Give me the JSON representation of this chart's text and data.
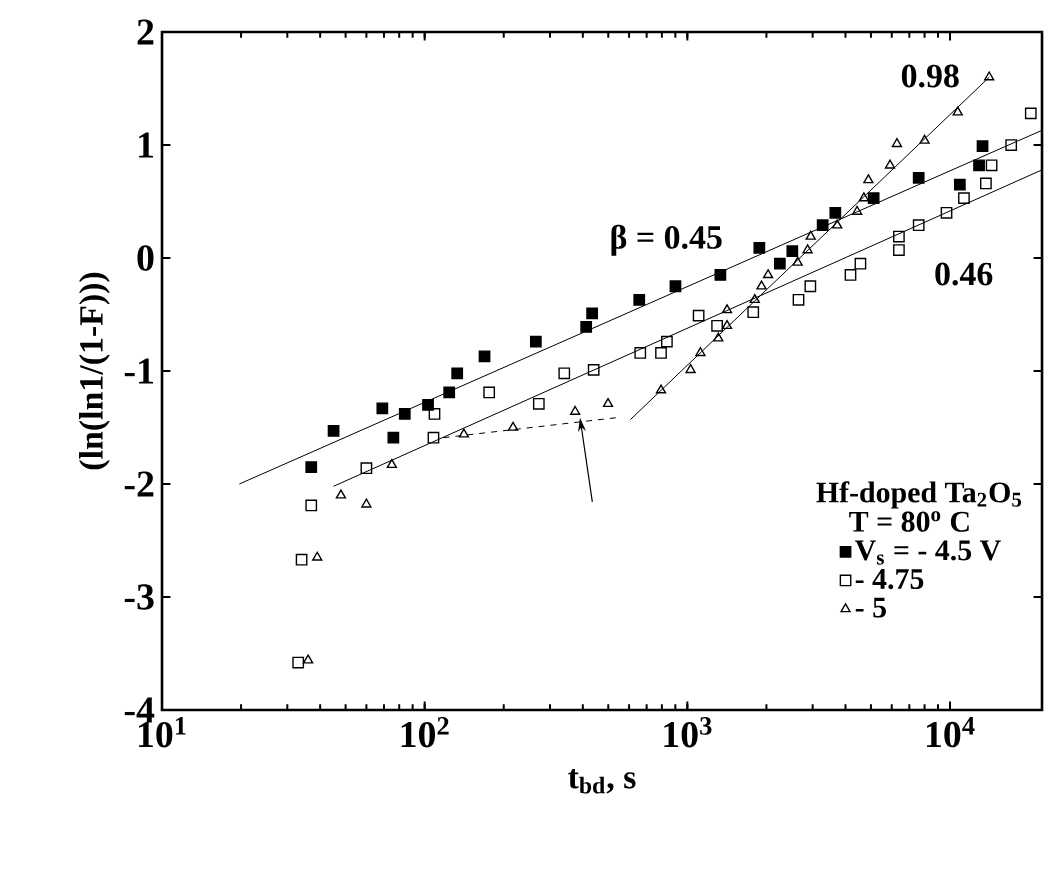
{
  "chart_data": {
    "type": "scatter",
    "xlabel": "t$_{bd}$, s",
    "ylabel": "(ln(ln1/(1-F)))",
    "legend_title": "Hf-doped Ta$_{2}$O$_{5}$",
    "log": "x",
    "xlim": [
      10,
      22400
    ],
    "ylim": [
      -4,
      2
    ],
    "xticks": [
      {
        "value": 10,
        "label": "10$^{1}$"
      },
      {
        "value": 100,
        "label": "10$^{2}$"
      },
      {
        "value": 1000,
        "label": "10$^{3}$"
      },
      {
        "value": 10000,
        "label": "10$^{4}$"
      }
    ],
    "yticks": [
      -4,
      -3,
      -2,
      -1,
      0,
      1,
      2
    ],
    "grid": false,
    "legend": "bottom right",
    "annotations": [
      "T = 80$^{o}$ C",
      "β = 0.45",
      "0.46",
      "0.98"
    ],
    "series": [
      {
        "name": "V$_{s}$ = - 4.5 V",
        "color": "#000000",
        "marker": "square",
        "x": [
          37,
          45,
          69,
          84,
          76,
          103,
          124,
          133,
          169,
          265,
          412,
          434,
          656,
          901,
          1336,
          1880,
          2250,
          2510,
          3275,
          3660,
          5120,
          7600,
          10900,
          12900,
          13300
        ],
        "values": [
          -1.85,
          -1.53,
          -1.33,
          -1.38,
          -1.59,
          -1.3,
          -1.19,
          -1.02,
          -0.87,
          -0.74,
          -0.61,
          -0.49,
          -0.37,
          -0.25,
          -0.15,
          0.09,
          -0.05,
          0.06,
          0.29,
          0.4,
          0.53,
          0.71,
          0.65,
          0.82,
          0.99
        ]
      },
      {
        "name": "- 4.75",
        "color": "#000000",
        "marker": "square-open",
        "x": [
          33,
          34,
          37,
          60,
          108,
          109,
          272,
          176,
          340,
          440,
          662,
          794,
          836,
          1104,
          1298,
          1782,
          2650,
          2940,
          4180,
          4560,
          6390,
          6390,
          7600,
          9700,
          11300,
          13700,
          14400,
          17100,
          20300
        ],
        "values": [
          -3.58,
          -2.67,
          -2.19,
          -1.86,
          -1.59,
          -1.38,
          -1.29,
          -1.19,
          -1.02,
          -0.99,
          -0.84,
          -0.84,
          -0.74,
          -0.51,
          -0.6,
          -0.48,
          -0.37,
          -0.25,
          -0.15,
          -0.05,
          0.07,
          0.19,
          0.29,
          0.4,
          0.53,
          0.66,
          0.82,
          1.0,
          1.28
        ]
      },
      {
        "name": "- 5",
        "color": "#000000",
        "marker": "triangle-open",
        "x": [
          36,
          39,
          48,
          60,
          75,
          141,
          217,
          374,
          499,
          794,
          1029,
          1122,
          1312,
          1416,
          1416,
          1806,
          1916,
          2030,
          2630,
          2870,
          2950,
          3720,
          4430,
          4700,
          4890,
          5910,
          6280,
          8000,
          10700,
          14100
        ],
        "values": [
          -3.56,
          -2.65,
          -2.1,
          -2.18,
          -1.83,
          -1.56,
          -1.5,
          -1.36,
          -1.29,
          -1.17,
          -0.99,
          -0.84,
          -0.71,
          -0.6,
          -0.46,
          -0.37,
          -0.25,
          -0.15,
          -0.04,
          0.07,
          0.19,
          0.29,
          0.41,
          0.53,
          0.69,
          0.82,
          1.01,
          1.04,
          1.29,
          1.6
        ]
      },
      {
        "type": "line",
        "color": "#000000",
        "marker": "none",
        "line_style": "solid",
        "x": [
          19.7,
          22400
        ],
        "values": [
          -2.0,
          1.13
        ]
      },
      {
        "type": "line",
        "color": "#000000",
        "marker": "none",
        "line_style": "solid",
        "x": [
          45,
          22400
        ],
        "values": [
          -2.02,
          0.78
        ]
      },
      {
        "type": "line",
        "color": "#000000",
        "marker": "none",
        "line_style": "solid",
        "x": [
          607,
          14100
        ],
        "values": [
          -1.43,
          1.6
        ]
      },
      {
        "type": "line",
        "color": "#000000",
        "marker": "none",
        "line_style": "dashed",
        "x": [
          118,
          551
        ],
        "values": [
          -1.59,
          -1.41
        ]
      }
    ]
  }
}
